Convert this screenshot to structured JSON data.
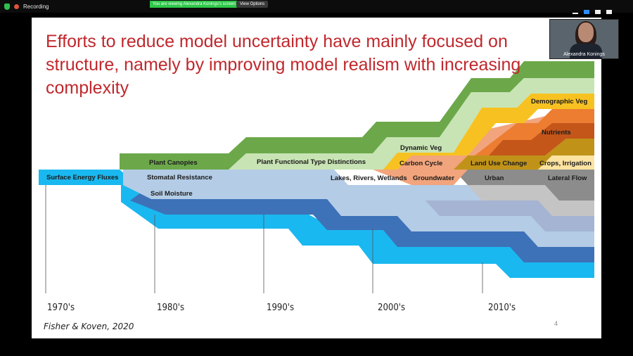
{
  "zoom": {
    "recording_label": "Recording",
    "viewing_banner": "You are viewing Alexandra Konings's screen",
    "view_options_label": "View Options",
    "participant_name": "Alexandra Konings"
  },
  "slide": {
    "title": "Efforts to reduce model uncertainty have mainly focused on structure, namely by improving model realism with increasing complexity",
    "citation": "Fisher & Koven, 2020",
    "page_number": "4"
  },
  "chart_data": {
    "type": "diagram",
    "decades": [
      "1970's",
      "1980's",
      "1990's",
      "2000's",
      "2010's"
    ],
    "layer_labels": [
      "Surface Energy Fluxes",
      "Plant Canopies",
      "Stomatal Resistance",
      "Soil Moisture",
      "Plant Functional Type Distinctions",
      "Lakes, Rivers, Wetlands",
      "Dynamic Veg",
      "Carbon Cycle",
      "Groundwater",
      "Demographic Veg",
      "Nutrients",
      "Land Use Change",
      "Urban",
      "Crops, Irrigation",
      "Lateral Flow"
    ],
    "colors": {
      "cyan": "#1ab8f0",
      "darkblue": "#3d72b8",
      "lightblue": "#b4cce6",
      "green": "#6ca84a",
      "lightgreen": "#c8e4b4",
      "peach": "#f2a47c",
      "gold": "#f7c221",
      "orange": "#ec7d31",
      "burnt": "#c4561a",
      "grey": "#8c8c8c",
      "lightgrey": "#c4c4c4",
      "bluegrey": "#a4b4d2",
      "olive": "#c09318",
      "cream": "#fde3a0",
      "title_red": "#c0282d"
    }
  }
}
